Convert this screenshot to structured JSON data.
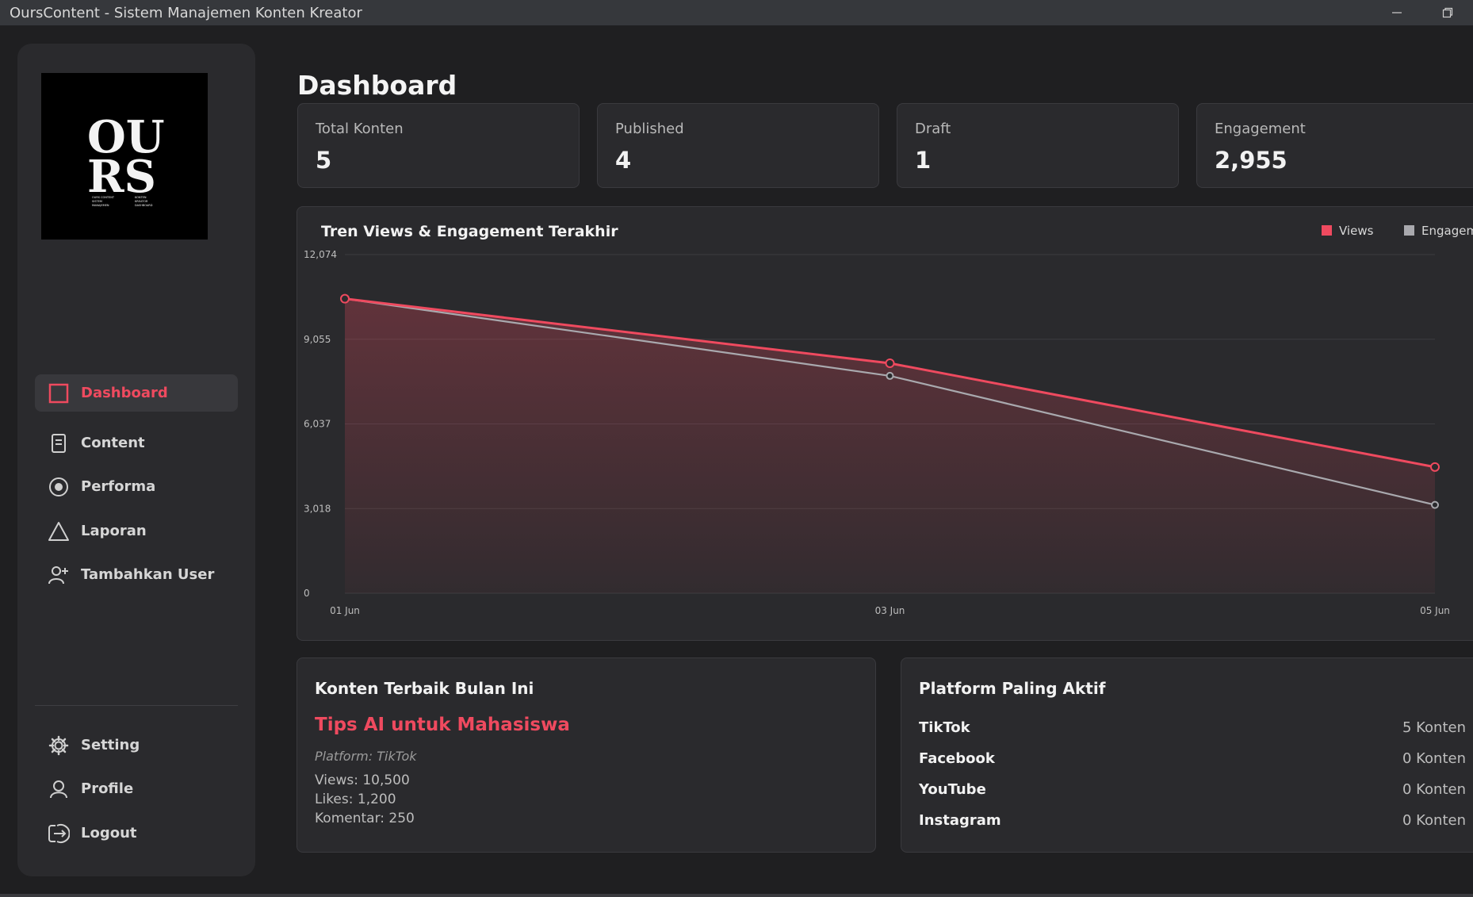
{
  "window": {
    "title": "OursContent - Sistem Manajemen Konten Kreator",
    "minimize_icon": "minimize-icon",
    "restore_icon": "restore-icon"
  },
  "sidebar": {
    "logo_text": "OURS",
    "logo_small_text_left": [
      "OURS CONTENT",
      "SISTEM",
      "MANAJEMEN"
    ],
    "logo_small_text_right": [
      "KONTEN",
      "KREATOR",
      "DASHBOARD"
    ],
    "nav": [
      {
        "label": "Dashboard",
        "icon": "square-icon",
        "active": true
      },
      {
        "label": "Content",
        "icon": "document-icon",
        "active": false
      },
      {
        "label": "Performa",
        "icon": "target-icon",
        "active": false
      },
      {
        "label": "Laporan",
        "icon": "triangle-icon",
        "active": false
      },
      {
        "label": "Tambahkan User",
        "icon": "add-user-icon",
        "active": false
      }
    ],
    "bottom_nav": [
      {
        "label": "Setting",
        "icon": "gear-icon"
      },
      {
        "label": "Profile",
        "icon": "user-icon"
      },
      {
        "label": "Logout",
        "icon": "logout-icon"
      }
    ],
    "accent_color": "#ef4a5f"
  },
  "main": {
    "title": "Dashboard",
    "stats": [
      {
        "label": "Total Konten",
        "value": "5"
      },
      {
        "label": "Published",
        "value": "4"
      },
      {
        "label": "Draft",
        "value": "1"
      },
      {
        "label": "Engagement",
        "value": "2,955"
      }
    ]
  },
  "chart_data": {
    "type": "area",
    "title": "Tren Views & Engagement Terakhir",
    "categories": [
      "01 Jun",
      "03 Jun",
      "05 Jun"
    ],
    "y_ticks": [
      "0",
      "3,018",
      "6,037",
      "9,055",
      "12,074"
    ],
    "ylim": [
      0,
      12074
    ],
    "grid": true,
    "legend_position": "top-right",
    "series": [
      {
        "name": "Views",
        "values": [
          10500,
          8200,
          4500
        ],
        "color": "#ef4a5f"
      },
      {
        "name": "Engagement",
        "values": [
          10500,
          7750,
          3150
        ],
        "color": "#a9a9ae"
      }
    ]
  },
  "best_content": {
    "heading": "Konten Terbaik Bulan Ini",
    "title": "Tips AI untuk Mahasiswa",
    "platform": "Platform: TikTok",
    "views": "Views: 10,500",
    "likes": "Likes: 1,200",
    "comments": "Komentar: 250"
  },
  "platforms": {
    "heading": "Platform Paling Aktif",
    "rows": [
      {
        "name": "TikTok",
        "count": "5 Konten"
      },
      {
        "name": "Facebook",
        "count": "0 Konten"
      },
      {
        "name": "YouTube",
        "count": "0 Konten"
      },
      {
        "name": "Instagram",
        "count": "0 Konten"
      }
    ]
  }
}
